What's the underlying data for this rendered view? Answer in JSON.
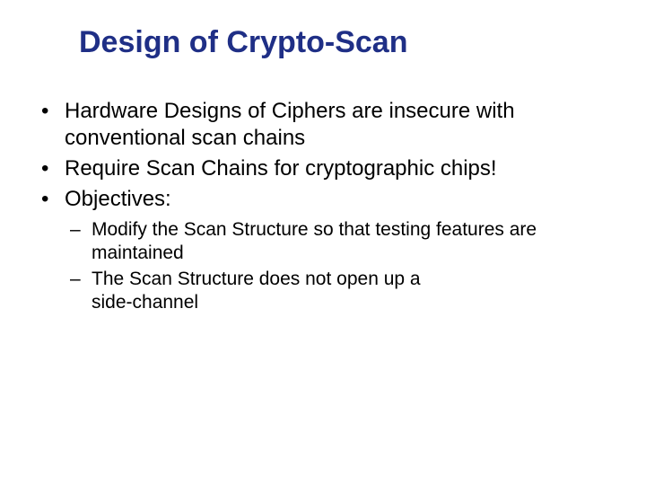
{
  "slide": {
    "title": "Design of Crypto-Scan",
    "title_color": "#1f2f86",
    "title_fontsize": 34,
    "body_color": "#000000",
    "body_fontsize": 24,
    "sub_fontsize": 21,
    "line_height": 1.25,
    "background_color": "#ffffff",
    "bullets": [
      {
        "text": "Hardware Designs of Ciphers are insecure with conventional scan chains"
      },
      {
        "text": "Require Scan Chains for cryptographic chips!"
      },
      {
        "text": "Objectives:",
        "sub": [
          {
            "text": "Modify the Scan Structure so that testing features are maintained"
          },
          {
            "text": "The Scan Structure does not open up a"
          },
          {
            "text_cont": "side-channel"
          }
        ]
      }
    ]
  }
}
